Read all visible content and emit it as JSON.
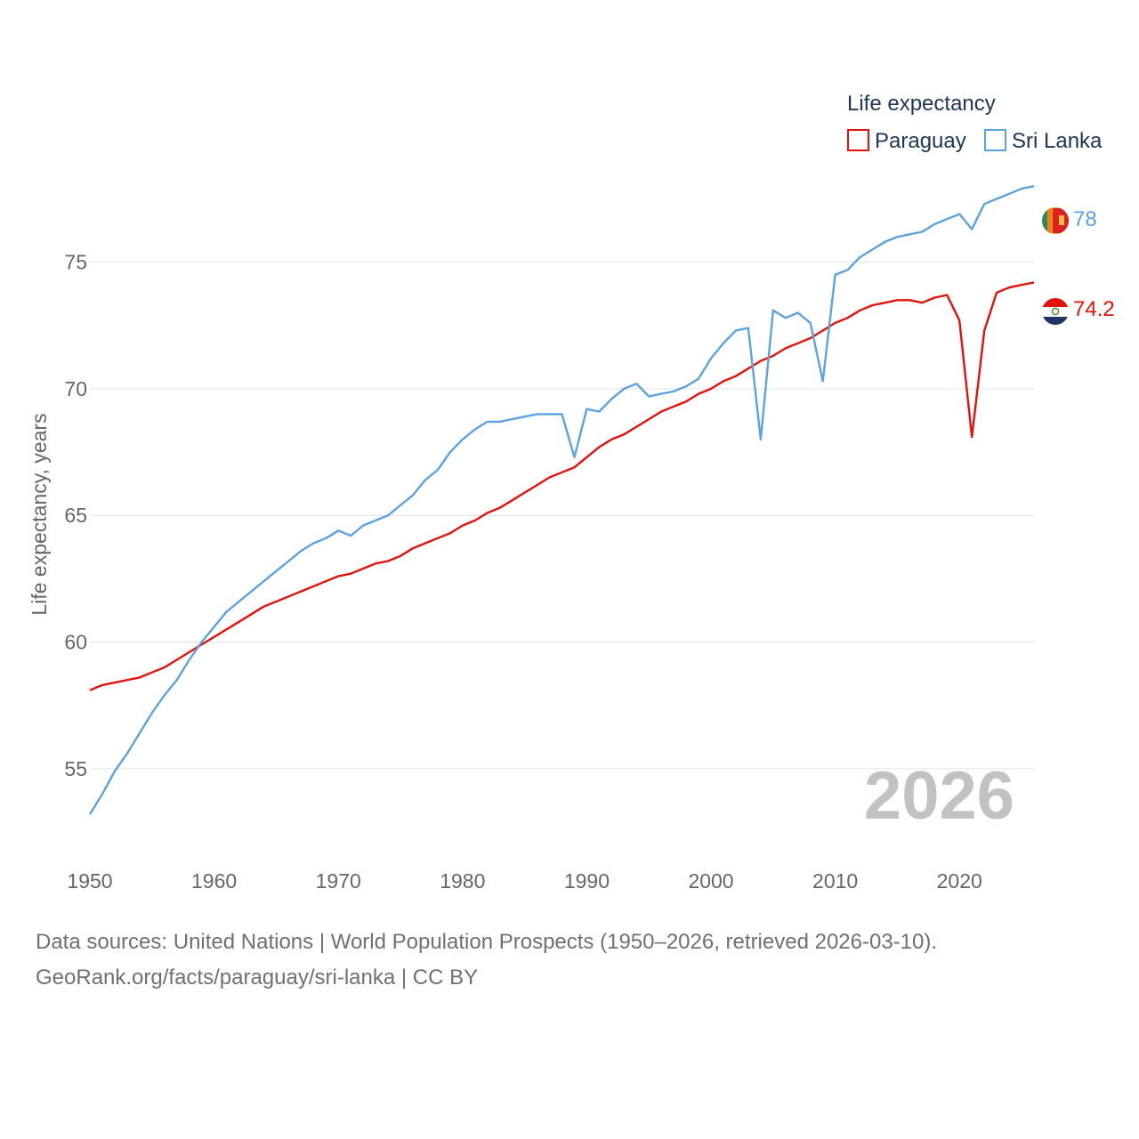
{
  "chart_data": {
    "type": "line",
    "title": "",
    "legend_title": "Life expectancy",
    "ylabel": "Life expectancy, years",
    "xlabel": "",
    "xlim": [
      1950,
      2026
    ],
    "ylim": [
      52.5,
      78.5
    ],
    "x_ticks": [
      1950,
      1960,
      1970,
      1980,
      1990,
      2000,
      2010,
      2020
    ],
    "y_ticks": [
      55,
      60,
      65,
      70,
      75
    ],
    "grid": true,
    "legend_position": "top-right",
    "year_watermark": "2026",
    "x": [
      1950,
      1951,
      1952,
      1953,
      1954,
      1955,
      1956,
      1957,
      1958,
      1959,
      1960,
      1961,
      1962,
      1963,
      1964,
      1965,
      1966,
      1967,
      1968,
      1969,
      1970,
      1971,
      1972,
      1973,
      1974,
      1975,
      1976,
      1977,
      1978,
      1979,
      1980,
      1981,
      1982,
      1983,
      1984,
      1985,
      1986,
      1987,
      1988,
      1989,
      1990,
      1991,
      1992,
      1993,
      1994,
      1995,
      1996,
      1997,
      1998,
      1999,
      2000,
      2001,
      2002,
      2003,
      2004,
      2005,
      2006,
      2007,
      2008,
      2009,
      2010,
      2011,
      2012,
      2013,
      2014,
      2015,
      2016,
      2017,
      2018,
      2019,
      2020,
      2021,
      2022,
      2023,
      2024,
      2025,
      2026
    ],
    "series": [
      {
        "name": "Paraguay",
        "color": "#e3120b",
        "end_label": "74.2",
        "flag": "paraguay-flag",
        "values": [
          58.1,
          58.3,
          58.4,
          58.5,
          58.6,
          58.8,
          59.0,
          59.3,
          59.6,
          59.9,
          60.2,
          60.5,
          60.8,
          61.1,
          61.4,
          61.6,
          61.8,
          62.0,
          62.2,
          62.4,
          62.6,
          62.7,
          62.9,
          63.1,
          63.2,
          63.4,
          63.7,
          63.9,
          64.1,
          64.3,
          64.6,
          64.8,
          65.1,
          65.3,
          65.6,
          65.9,
          66.2,
          66.5,
          66.7,
          66.9,
          67.3,
          67.7,
          68.0,
          68.2,
          68.5,
          68.8,
          69.1,
          69.3,
          69.5,
          69.8,
          70.0,
          70.3,
          70.5,
          70.8,
          71.1,
          71.3,
          71.6,
          71.8,
          72.0,
          72.3,
          72.6,
          72.8,
          73.1,
          73.3,
          73.4,
          73.5,
          73.5,
          73.4,
          73.6,
          73.7,
          72.7,
          68.1,
          72.3,
          73.8,
          74.0,
          74.1,
          74.2
        ]
      },
      {
        "name": "Sri Lanka",
        "color": "#5ba3e0",
        "end_label": "78",
        "flag": "sri-lanka-flag",
        "values": [
          53.2,
          54.0,
          54.9,
          55.6,
          56.4,
          57.2,
          57.9,
          58.5,
          59.3,
          60.0,
          60.6,
          61.2,
          61.6,
          62.0,
          62.4,
          62.8,
          63.2,
          63.6,
          63.9,
          64.1,
          64.4,
          64.2,
          64.6,
          64.8,
          65.0,
          65.4,
          65.8,
          66.4,
          66.8,
          67.5,
          68.0,
          68.4,
          68.7,
          68.7,
          68.8,
          68.9,
          69.0,
          69.0,
          69.0,
          67.3,
          69.2,
          69.1,
          69.6,
          70.0,
          70.2,
          69.7,
          69.8,
          69.9,
          70.1,
          70.4,
          71.2,
          71.8,
          72.3,
          72.4,
          68.0,
          73.1,
          72.8,
          73.0,
          72.6,
          70.3,
          74.5,
          74.7,
          75.2,
          75.5,
          75.8,
          76.0,
          76.1,
          76.2,
          76.5,
          76.7,
          76.9,
          76.3,
          77.3,
          77.5,
          77.7,
          77.9,
          78.0
        ]
      }
    ]
  },
  "footer": {
    "source_line": "Data sources: United Nations | World Population Prospects (1950–2026, retrieved 2026-03-10).",
    "url_line": "GeoRank.org/facts/paraguay/sri-lanka | CC BY"
  }
}
